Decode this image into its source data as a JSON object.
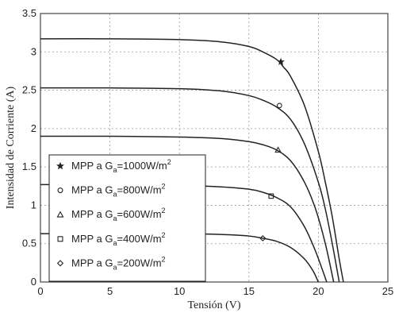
{
  "chart_data": {
    "type": "line",
    "xlabel": "Tensión (V)",
    "ylabel": "Intensidad de Corriente (A)",
    "xlim": [
      0,
      25
    ],
    "ylim": [
      0,
      3.5
    ],
    "xticks": [
      "0",
      "5",
      "10",
      "15",
      "20",
      "25"
    ],
    "yticks": [
      "0",
      "0.5",
      "1",
      "1.5",
      "2",
      "2.5",
      "3",
      "3.5"
    ],
    "grid": true,
    "legend_position": "bottom-left",
    "series": [
      {
        "label_prefix": "MPP a G",
        "label_sub": "a",
        "label_value": "=1000W/m",
        "label_sup": "2",
        "marker": "star",
        "x": [
          0,
          5,
          10,
          13,
          15,
          16,
          17,
          17.5,
          18,
          19,
          20,
          20.5,
          21,
          21.5,
          21.8
        ],
        "y": [
          3.17,
          3.17,
          3.16,
          3.13,
          3.07,
          3.0,
          2.9,
          2.8,
          2.68,
          2.3,
          1.7,
          1.3,
          0.85,
          0.3,
          0
        ],
        "mpp": [
          17.3,
          2.87
        ]
      },
      {
        "label_prefix": "MPP a G",
        "label_sub": "a",
        "label_value": "=800W/m",
        "label_sup": "2",
        "marker": "circle",
        "x": [
          0,
          5,
          10,
          13,
          15,
          16,
          17,
          18,
          19,
          20,
          20.5,
          21,
          21.5
        ],
        "y": [
          2.53,
          2.53,
          2.52,
          2.49,
          2.43,
          2.37,
          2.28,
          2.12,
          1.8,
          1.3,
          0.95,
          0.5,
          0
        ],
        "mpp": [
          17.2,
          2.3
        ]
      },
      {
        "label_prefix": "MPP a G",
        "label_sub": "a",
        "label_value": "=600W/m",
        "label_sup": "2",
        "marker": "triangle",
        "x": [
          0,
          5,
          10,
          13,
          15,
          16,
          17,
          18,
          19,
          19.8,
          20.5,
          21.1
        ],
        "y": [
          1.9,
          1.9,
          1.89,
          1.87,
          1.83,
          1.79,
          1.72,
          1.58,
          1.3,
          0.95,
          0.5,
          0
        ],
        "mpp": [
          17.1,
          1.72
        ]
      },
      {
        "label_prefix": "MPP a G",
        "label_sub": "a",
        "label_value": "=400W/m",
        "label_sup": "2",
        "marker": "square",
        "x": [
          0,
          5,
          10,
          13,
          15,
          16,
          17,
          18,
          19,
          19.8,
          20.6
        ],
        "y": [
          1.27,
          1.27,
          1.26,
          1.24,
          1.21,
          1.17,
          1.1,
          0.98,
          0.72,
          0.4,
          0
        ],
        "mpp": [
          16.6,
          1.12
        ]
      },
      {
        "label_prefix": "MPP a G",
        "label_sub": "a",
        "label_value": "=200W/m",
        "label_sup": "2",
        "marker": "diamond",
        "x": [
          0,
          5,
          10,
          13,
          15,
          16,
          17,
          18,
          19,
          19.6,
          20.0
        ],
        "y": [
          0.63,
          0.63,
          0.63,
          0.62,
          0.6,
          0.57,
          0.53,
          0.45,
          0.3,
          0.15,
          0
        ],
        "mpp": [
          16.0,
          0.57
        ]
      }
    ]
  }
}
